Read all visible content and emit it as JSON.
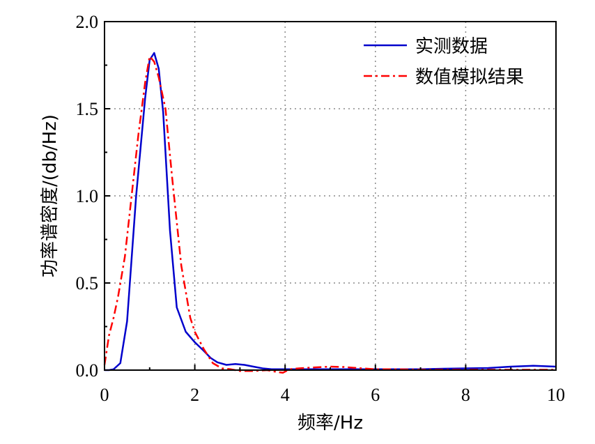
{
  "chart_data": {
    "type": "line",
    "xlabel": "频率/Hz",
    "ylabel": "功率谱密度/(db/Hz)",
    "xlim": [
      0,
      10
    ],
    "ylim": [
      0,
      2.0
    ],
    "x_ticks": [
      0,
      2,
      4,
      6,
      8,
      10
    ],
    "x_tick_labels": [
      "0",
      "2",
      "4",
      "6",
      "8",
      "10"
    ],
    "y_ticks": [
      0,
      0.5,
      1.0,
      1.5,
      2.0
    ],
    "y_tick_labels": [
      "0.0",
      "0.5",
      "1.0",
      "1.5",
      "2.0"
    ],
    "grid": true,
    "legend_position": "top-right",
    "series": [
      {
        "name": "实测数据",
        "color": "#0000cc",
        "style": "solid",
        "x": [
          0,
          0.1,
          0.2,
          0.35,
          0.5,
          0.7,
          0.9,
          1.0,
          1.1,
          1.2,
          1.3,
          1.45,
          1.6,
          1.8,
          2.0,
          2.2,
          2.35,
          2.5,
          2.7,
          2.9,
          3.1,
          3.3,
          3.5,
          3.7,
          4.0,
          4.5,
          5.0,
          5.5,
          6.0,
          6.5,
          7.0,
          7.5,
          8.0,
          8.5,
          9.0,
          9.5,
          10.0
        ],
        "y": [
          0.0,
          0.0,
          0.005,
          0.04,
          0.28,
          1.0,
          1.56,
          1.78,
          1.82,
          1.73,
          1.48,
          0.8,
          0.36,
          0.22,
          0.16,
          0.11,
          0.07,
          0.045,
          0.03,
          0.035,
          0.03,
          0.02,
          0.01,
          0.005,
          0.005,
          0.005,
          0.005,
          0.005,
          0.005,
          0.005,
          0.005,
          0.008,
          0.01,
          0.012,
          0.02,
          0.025,
          0.02
        ]
      },
      {
        "name": "数值模拟结果",
        "color": "#ff0000",
        "style": "dash-dot",
        "x": [
          0,
          0.1,
          0.2,
          0.3,
          0.45,
          0.6,
          0.75,
          0.9,
          1.0,
          1.1,
          1.2,
          1.35,
          1.5,
          1.7,
          1.9,
          2.0,
          2.2,
          2.4,
          2.6,
          2.8,
          3.0,
          3.3,
          3.6,
          3.8,
          3.95,
          4.1,
          4.3,
          4.6,
          5.0,
          5.3,
          5.6,
          6.0,
          6.5,
          7.0,
          7.5,
          8.0,
          8.5,
          9.0,
          9.5,
          10.0
        ],
        "y": [
          0.03,
          0.2,
          0.3,
          0.42,
          0.65,
          1.0,
          1.35,
          1.65,
          1.8,
          1.77,
          1.68,
          1.5,
          1.1,
          0.6,
          0.3,
          0.22,
          0.12,
          0.04,
          0.01,
          0.005,
          -0.005,
          -0.005,
          0.0,
          -0.01,
          -0.015,
          0.005,
          0.01,
          0.015,
          0.02,
          0.018,
          0.012,
          0.005,
          0.005,
          0.002,
          0.002,
          0.002,
          0.002,
          0.002,
          0.002,
          0.002
        ]
      }
    ]
  }
}
